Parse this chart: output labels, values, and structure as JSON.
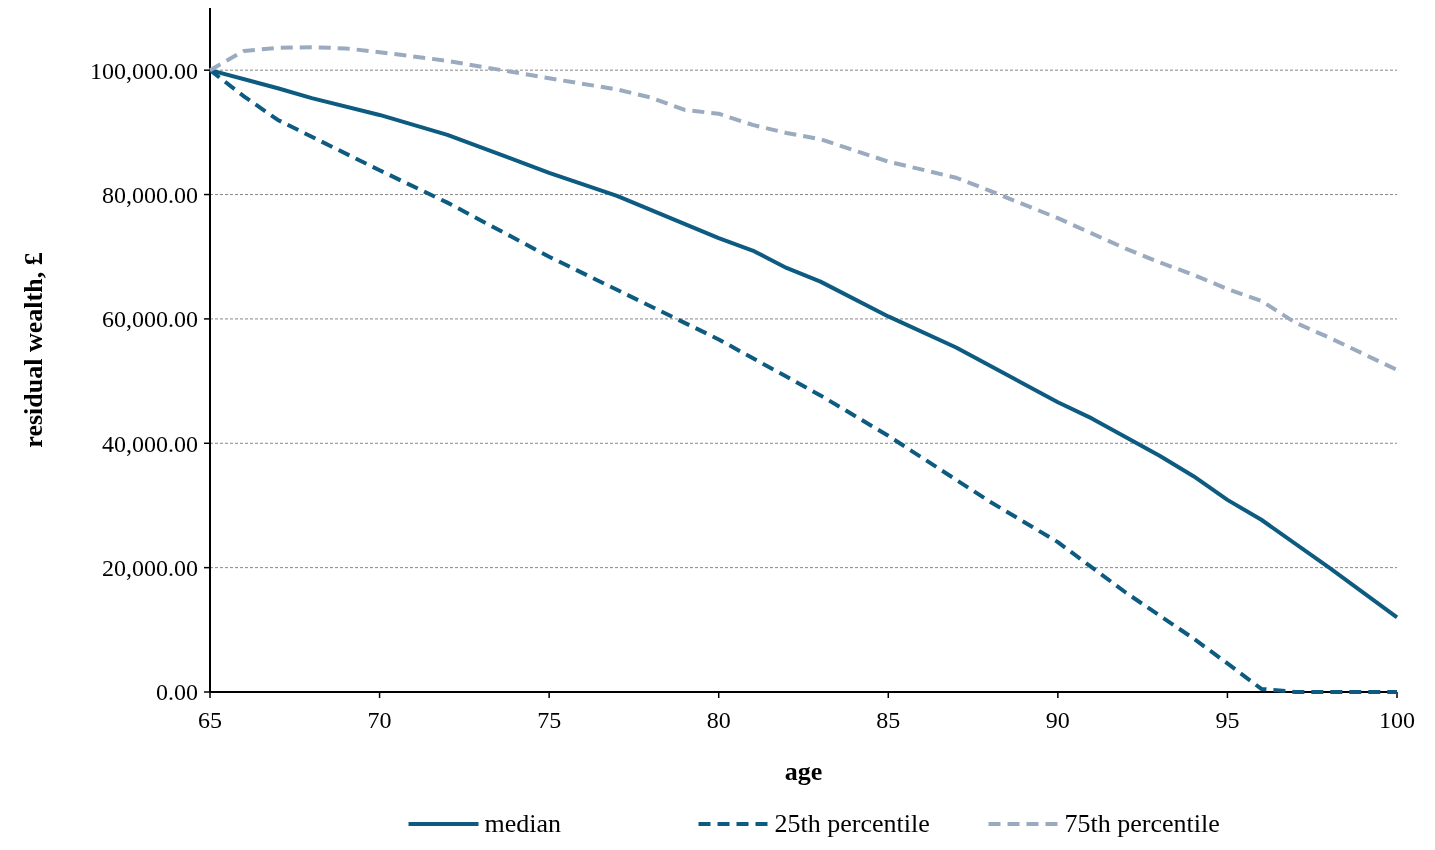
{
  "chart_data": {
    "type": "line",
    "xlabel": "age",
    "ylabel": "residual wealth, £",
    "xlim": [
      65,
      100
    ],
    "xticks": [
      65,
      70,
      75,
      80,
      85,
      90,
      95,
      100
    ],
    "ylim": [
      0,
      110000
    ],
    "yticks": [
      {
        "value": 0,
        "label": "0.00"
      },
      {
        "value": 20000,
        "label": "20,000.00"
      },
      {
        "value": 40000,
        "label": "40,000.00"
      },
      {
        "value": 60000,
        "label": "60,000.00"
      },
      {
        "value": 80000,
        "label": "80,000.00"
      },
      {
        "value": 100000,
        "label": "100,000.00"
      }
    ],
    "grid": "y",
    "legend": "bottom",
    "series": [
      {
        "name": "median",
        "color": "#0d5b80",
        "line_style": "solid",
        "x": [
          65,
          67,
          68,
          70,
          72,
          75,
          77,
          80,
          81,
          82,
          83,
          85,
          87,
          90,
          91,
          93,
          94,
          95,
          96,
          98,
          100
        ],
        "values": [
          100000,
          97100,
          95500,
          92800,
          89600,
          83500,
          79800,
          73000,
          71000,
          68200,
          66000,
          60400,
          55400,
          46600,
          44000,
          38000,
          34700,
          30900,
          27700,
          20000,
          12000
        ]
      },
      {
        "name": "25th percentile",
        "color": "#0d5b80",
        "line_style": "dashed",
        "x": [
          65,
          66,
          67,
          70,
          72,
          75,
          80,
          83,
          85,
          88,
          90,
          92,
          94,
          95,
          96,
          97,
          100
        ],
        "values": [
          100000,
          95800,
          92000,
          83900,
          78700,
          70000,
          56700,
          47700,
          41200,
          30600,
          24100,
          16000,
          8600,
          4600,
          500,
          0,
          0
        ]
      },
      {
        "name": "75th percentile",
        "color": "#9aaabf",
        "line_style": "dashed",
        "x": [
          65,
          66,
          67,
          68,
          69,
          70,
          72,
          75,
          77,
          78,
          79,
          80,
          81,
          82,
          83,
          85,
          86,
          87,
          88,
          90,
          92,
          93,
          94,
          95,
          96,
          97,
          98,
          100
        ],
        "values": [
          100000,
          103100,
          103600,
          103700,
          103500,
          102900,
          101500,
          98700,
          96900,
          95600,
          93600,
          93000,
          91200,
          89900,
          88900,
          85300,
          84000,
          82700,
          80600,
          76200,
          71300,
          69100,
          67100,
          64800,
          62900,
          59400,
          57000,
          51800
        ]
      }
    ]
  }
}
